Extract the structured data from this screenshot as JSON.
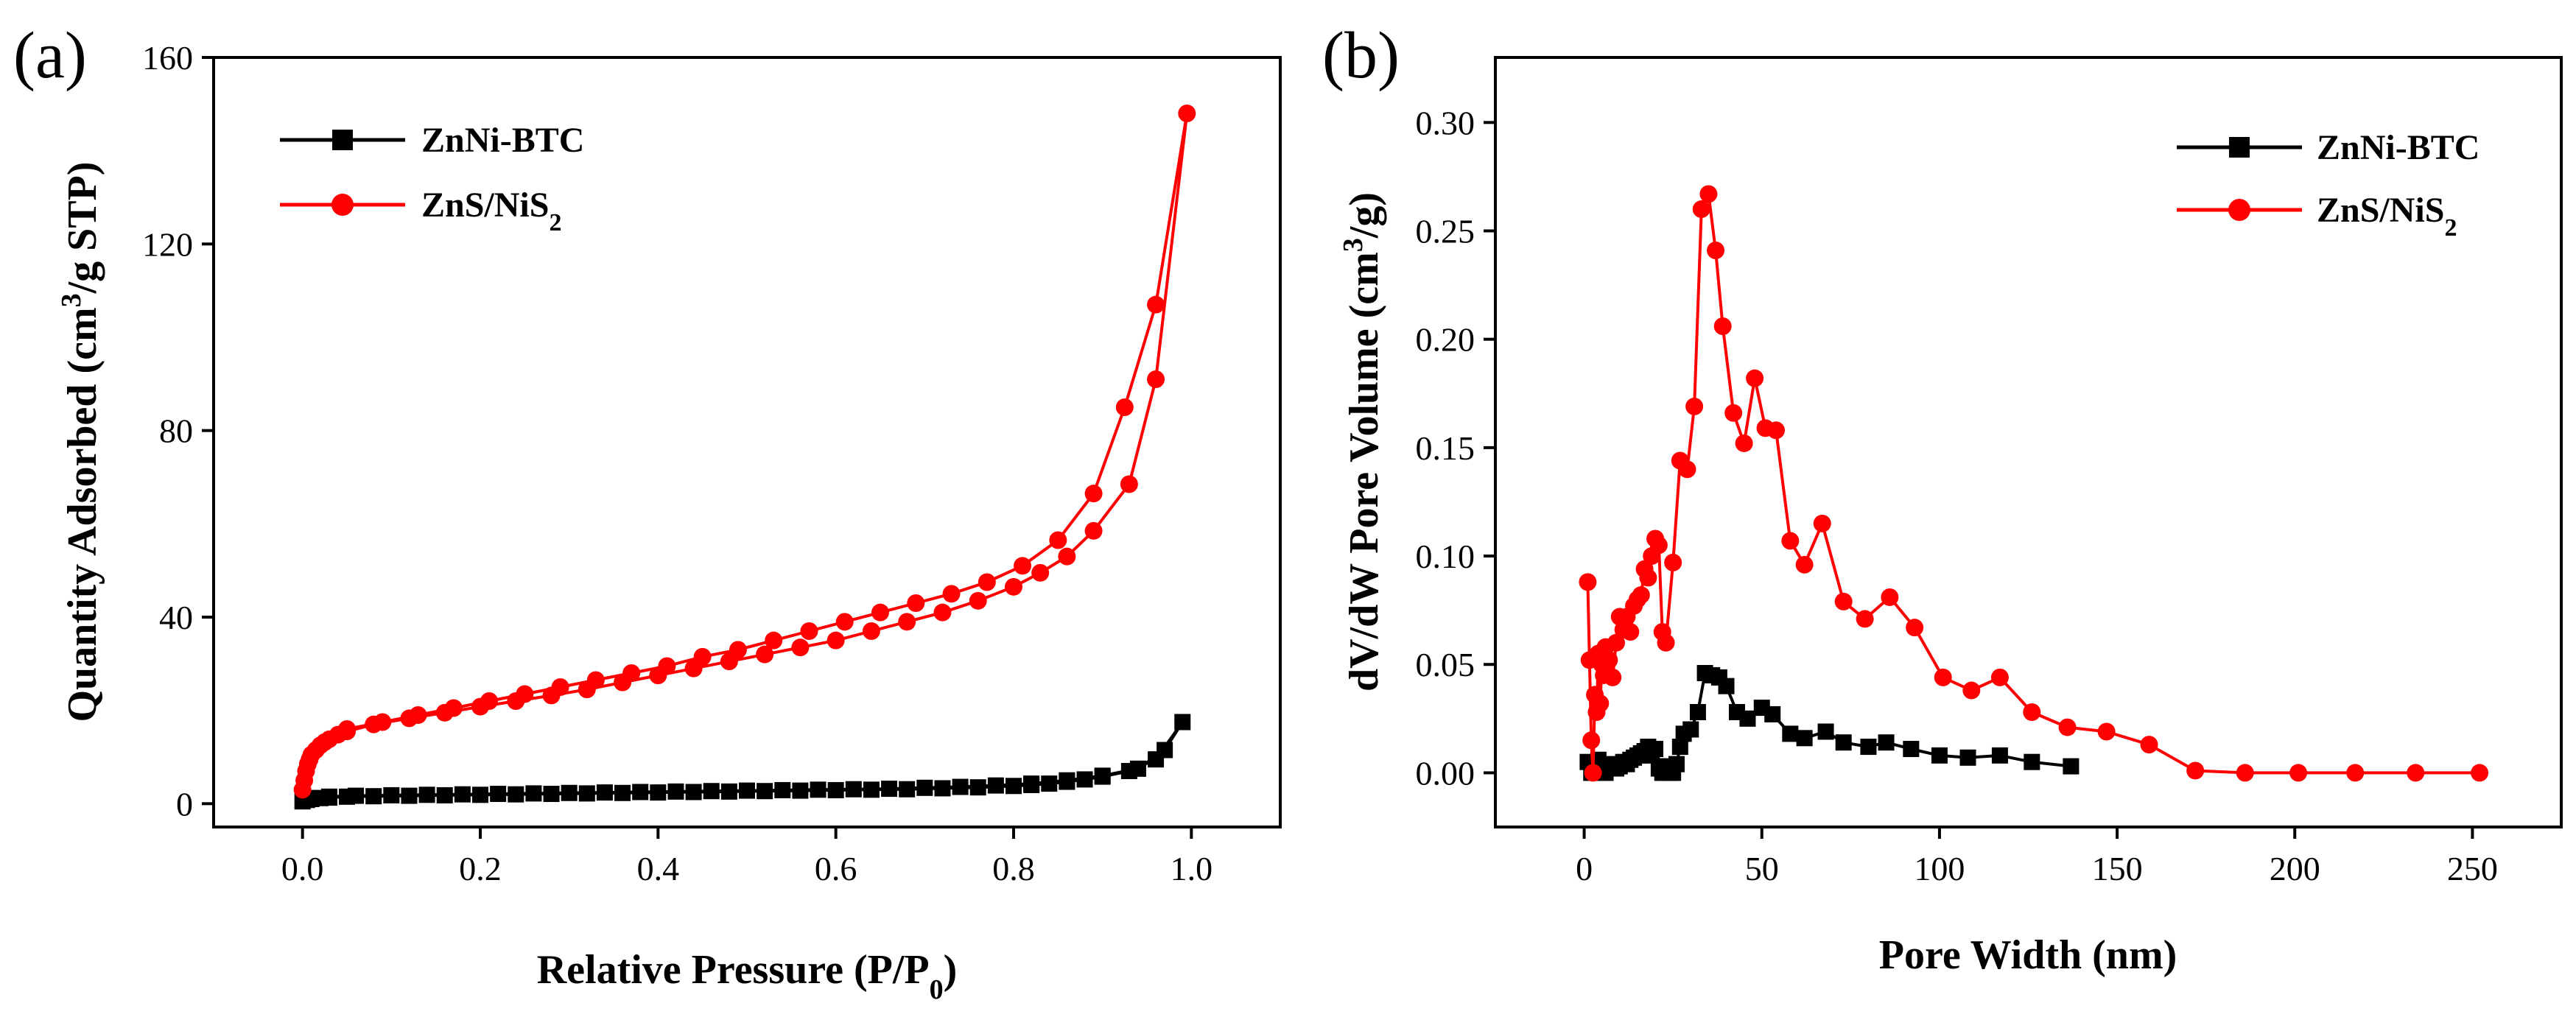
{
  "chart_data": [
    {
      "panel": "(a)",
      "type": "line",
      "xlabel": "Relative Pressure (P/P",
      "xlabel_sub": "0",
      "xlabel_tail": ")",
      "ylabel": "Quantity Adsorbed (cm",
      "ylabel_sup": "3",
      "ylabel_tail": "/g STP)",
      "xlim": [
        -0.1,
        1.1
      ],
      "ylim": [
        -5,
        160
      ],
      "xticks": [
        0.0,
        0.2,
        0.4,
        0.6,
        0.8,
        1.0
      ],
      "xtick_labels": [
        "0.0",
        "0.2",
        "0.4",
        "0.6",
        "0.8",
        "1.0"
      ],
      "yticks": [
        0,
        40,
        80,
        120,
        160
      ],
      "ytick_labels": [
        "0",
        "40",
        "80",
        "120",
        "160"
      ],
      "legend_position": "top-left",
      "series": [
        {
          "name": "ZnNi-BTC",
          "legend_main": "ZnNi-BTC",
          "legend_sub": "",
          "color": "#000000",
          "marker": "square",
          "x": [
            0.0,
            0.005,
            0.01,
            0.02,
            0.03,
            0.05,
            0.08,
            0.12,
            0.16,
            0.2,
            0.24,
            0.28,
            0.32,
            0.36,
            0.4,
            0.44,
            0.48,
            0.52,
            0.56,
            0.6,
            0.64,
            0.68,
            0.72,
            0.76,
            0.8,
            0.82,
            0.84,
            0.86,
            0.88,
            0.9,
            0.93,
            0.96,
            0.99,
            0.97,
            0.94,
            0.9,
            0.86,
            0.82,
            0.78,
            0.74,
            0.7,
            0.66,
            0.62,
            0.58,
            0.54,
            0.5,
            0.46,
            0.42,
            0.38,
            0.34,
            0.3,
            0.26,
            0.22,
            0.18,
            0.14,
            0.1,
            0.06,
            0.03,
            0.01
          ],
          "y": [
            0.5,
            0.8,
            1.0,
            1.2,
            1.3,
            1.5,
            1.6,
            1.7,
            1.8,
            1.9,
            2.0,
            2.1,
            2.2,
            2.3,
            2.4,
            2.5,
            2.6,
            2.7,
            2.8,
            2.9,
            3.0,
            3.1,
            3.3,
            3.5,
            3.8,
            4.0,
            4.3,
            4.7,
            5.2,
            5.8,
            7.0,
            9.5,
            17.5,
            11.5,
            7.5,
            6.0,
            5.0,
            4.3,
            3.9,
            3.6,
            3.4,
            3.2,
            3.1,
            3.0,
            2.9,
            2.8,
            2.7,
            2.6,
            2.5,
            2.4,
            2.3,
            2.2,
            2.1,
            2.0,
            1.9,
            1.8,
            1.7,
            1.5,
            1.2
          ]
        },
        {
          "name": "ZnS/NiS2",
          "legend_main": "ZnS/NiS",
          "legend_sub": "2",
          "color": "#ff0000",
          "marker": "circle",
          "x": [
            0.0,
            0.002,
            0.004,
            0.006,
            0.008,
            0.01,
            0.015,
            0.02,
            0.025,
            0.03,
            0.04,
            0.05,
            0.08,
            0.12,
            0.16,
            0.2,
            0.24,
            0.28,
            0.32,
            0.36,
            0.4,
            0.44,
            0.48,
            0.52,
            0.56,
            0.6,
            0.64,
            0.68,
            0.72,
            0.76,
            0.8,
            0.83,
            0.86,
            0.89,
            0.93,
            0.96,
            0.995,
            0.96,
            0.925,
            0.89,
            0.85,
            0.81,
            0.77,
            0.73,
            0.69,
            0.65,
            0.61,
            0.57,
            0.53,
            0.49,
            0.45,
            0.41,
            0.37,
            0.33,
            0.29,
            0.25,
            0.21,
            0.17,
            0.13,
            0.09,
            0.05
          ],
          "y": [
            3,
            5,
            7,
            8.5,
            9.5,
            10.5,
            11.5,
            12.5,
            13.2,
            13.8,
            14.8,
            15.5,
            17,
            18.3,
            19.5,
            20.8,
            22,
            23.2,
            24.5,
            26,
            27.5,
            29,
            30.5,
            32,
            33.5,
            35,
            37,
            39,
            41,
            43.5,
            46.5,
            49.5,
            53,
            58.5,
            68.5,
            91,
            148,
            107,
            85,
            66.5,
            56.5,
            51,
            47.5,
            45,
            43,
            41,
            39,
            37,
            35,
            33,
            31.5,
            29.5,
            28,
            26.5,
            25,
            23.5,
            22,
            20.5,
            19,
            17.5,
            16
          ]
        }
      ]
    },
    {
      "panel": "(b)",
      "type": "line",
      "xlabel": "Pore Width (nm)",
      "ylabel": "dV/dW Pore Volume (cm",
      "ylabel_sup": "3",
      "ylabel_tail": "/g)",
      "xlim": [
        -25,
        275
      ],
      "ylim": [
        -0.025,
        0.33
      ],
      "xticks": [
        0,
        50,
        100,
        150,
        200,
        250
      ],
      "xtick_labels": [
        "0",
        "50",
        "100",
        "150",
        "200",
        "250"
      ],
      "yticks": [
        0.0,
        0.05,
        0.1,
        0.15,
        0.2,
        0.25,
        0.3
      ],
      "ytick_labels": [
        "0.00",
        "0.05",
        "0.10",
        "0.15",
        "0.20",
        "0.25",
        "0.30"
      ],
      "legend_position": "top-right",
      "series": [
        {
          "name": "ZnNi-BTC",
          "legend_main": "ZnNi-BTC",
          "legend_sub": "",
          "color": "#000000",
          "marker": "square",
          "x": [
            1,
            2,
            3,
            4,
            5,
            6,
            7,
            8,
            9,
            10,
            11,
            12,
            13,
            14,
            15,
            16,
            17,
            18,
            19,
            20,
            21,
            22,
            23,
            24,
            25,
            26,
            27,
            28,
            30,
            32,
            34,
            36,
            38,
            40,
            43,
            46,
            50,
            53,
            58,
            62,
            68,
            73,
            80,
            85,
            92,
            100,
            108,
            117,
            126,
            137
          ],
          "y": [
            0.005,
            0.0,
            0.004,
            0.006,
            0.003,
            0.0,
            0.003,
            0.004,
            0.002,
            0.003,
            0.005,
            0.004,
            0.006,
            0.007,
            0.008,
            0.009,
            0.01,
            0.012,
            0.008,
            0.011,
            0.002,
            0.0,
            0.003,
            0.0,
            0.0,
            0.004,
            0.012,
            0.018,
            0.02,
            0.028,
            0.046,
            0.045,
            0.044,
            0.04,
            0.028,
            0.025,
            0.03,
            0.027,
            0.018,
            0.016,
            0.019,
            0.014,
            0.012,
            0.014,
            0.011,
            0.008,
            0.007,
            0.008,
            0.005,
            0.003
          ]
        },
        {
          "name": "ZnS/NiS2",
          "legend_main": "ZnS/NiS",
          "legend_sub": "2",
          "color": "#ff0000",
          "marker": "circle",
          "x": [
            1,
            1.5,
            2,
            2.5,
            3,
            3.5,
            4,
            4.5,
            5,
            5.5,
            6,
            7,
            8,
            9,
            10,
            11,
            12,
            13,
            14,
            15,
            16,
            17,
            18,
            19,
            20,
            21,
            22,
            23,
            25,
            27,
            29,
            31,
            33,
            35,
            37,
            39,
            42,
            45,
            48,
            51,
            54,
            58,
            62,
            67,
            73,
            79,
            86,
            93,
            101,
            109,
            117,
            126,
            136,
            147,
            159,
            172,
            186,
            201,
            217,
            234,
            252
          ],
          "y": [
            0.088,
            0.052,
            0.015,
            0.0,
            0.036,
            0.028,
            0.055,
            0.032,
            0.05,
            0.045,
            0.058,
            0.052,
            0.044,
            0.06,
            0.072,
            0.066,
            0.072,
            0.065,
            0.077,
            0.08,
            0.082,
            0.094,
            0.09,
            0.1,
            0.108,
            0.105,
            0.065,
            0.06,
            0.097,
            0.144,
            0.14,
            0.169,
            0.26,
            0.267,
            0.241,
            0.206,
            0.166,
            0.152,
            0.182,
            0.159,
            0.158,
            0.107,
            0.096,
            0.115,
            0.079,
            0.071,
            0.081,
            0.067,
            0.044,
            0.038,
            0.044,
            0.028,
            0.021,
            0.019,
            0.013,
            0.001,
            0.0,
            0.0,
            0.0,
            0.0,
            0.0
          ]
        }
      ]
    }
  ]
}
